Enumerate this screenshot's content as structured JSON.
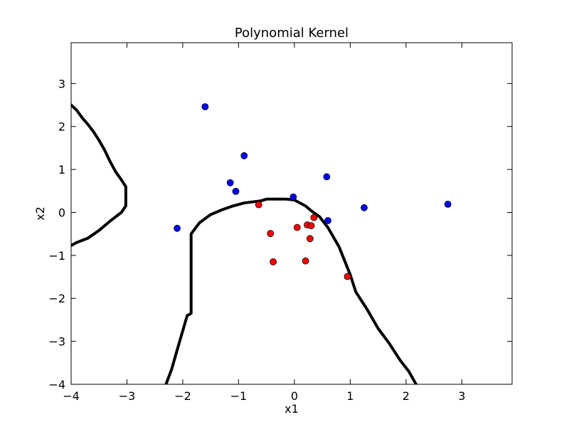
{
  "chart_data": {
    "type": "scatter",
    "title": "Polynomial Kernel",
    "xlabel": "x1",
    "ylabel": "x2",
    "xlim": [
      -4,
      3.9
    ],
    "ylim": [
      -4,
      3.95
    ],
    "grid": false,
    "x_ticks": [
      -4,
      -3,
      -2,
      -1,
      0,
      1,
      2,
      3
    ],
    "y_ticks": [
      -4,
      -3,
      -2,
      -1,
      0,
      1,
      2,
      3
    ],
    "x_tick_labels": [
      "−4",
      "−3",
      "−2",
      "−1",
      "0",
      "1",
      "2",
      "3"
    ],
    "y_tick_labels": [
      "−4",
      "−3",
      "−2",
      "−1",
      "0",
      "1",
      "2",
      "3"
    ],
    "series": [
      {
        "color": "#0000ff",
        "points": [
          {
            "x": -1.6,
            "y": 2.46
          },
          {
            "x": -0.9,
            "y": 1.32
          },
          {
            "x": -1.15,
            "y": 0.69
          },
          {
            "x": -1.05,
            "y": 0.49
          },
          {
            "x": -2.1,
            "y": -0.37
          },
          {
            "x": -0.02,
            "y": 0.36
          },
          {
            "x": 0.58,
            "y": 0.83
          },
          {
            "x": 0.6,
            "y": -0.19
          },
          {
            "x": 1.25,
            "y": 0.11
          },
          {
            "x": 2.75,
            "y": 0.19
          }
        ]
      },
      {
        "color": "#ff0000",
        "points": [
          {
            "x": -0.64,
            "y": 0.18
          },
          {
            "x": -0.43,
            "y": -0.49
          },
          {
            "x": 0.05,
            "y": -0.35
          },
          {
            "x": 0.23,
            "y": -0.29
          },
          {
            "x": 0.3,
            "y": -0.31
          },
          {
            "x": 0.35,
            "y": -0.12
          },
          {
            "x": 0.28,
            "y": -0.61
          },
          {
            "x": -0.38,
            "y": -1.15
          },
          {
            "x": 0.2,
            "y": -1.13
          },
          {
            "x": 0.95,
            "y": -1.49
          }
        ]
      }
    ],
    "decision_boundaries": [
      {
        "color": "#000000",
        "points": [
          {
            "x": -4.0,
            "y": 2.5
          },
          {
            "x": -3.9,
            "y": 2.38
          },
          {
            "x": -3.8,
            "y": 2.2
          },
          {
            "x": -3.7,
            "y": 2.05
          },
          {
            "x": -3.6,
            "y": 1.88
          },
          {
            "x": -3.5,
            "y": 1.68
          },
          {
            "x": -3.4,
            "y": 1.45
          },
          {
            "x": -3.3,
            "y": 1.18
          },
          {
            "x": -3.2,
            "y": 0.94
          },
          {
            "x": -3.1,
            "y": 0.76
          },
          {
            "x": -3.02,
            "y": 0.6
          },
          {
            "x": -3.02,
            "y": 0.15
          },
          {
            "x": -3.1,
            "y": 0.0
          },
          {
            "x": -3.3,
            "y": -0.2
          },
          {
            "x": -3.5,
            "y": -0.42
          },
          {
            "x": -3.7,
            "y": -0.6
          },
          {
            "x": -3.9,
            "y": -0.7
          },
          {
            "x": -4.0,
            "y": -0.77
          }
        ]
      },
      {
        "color": "#000000",
        "points": [
          {
            "x": -2.3,
            "y": -4.0
          },
          {
            "x": -2.2,
            "y": -3.65
          },
          {
            "x": -2.1,
            "y": -3.2
          },
          {
            "x": -1.92,
            "y": -2.4
          },
          {
            "x": -1.85,
            "y": -2.35
          },
          {
            "x": -1.85,
            "y": -0.5
          },
          {
            "x": -1.7,
            "y": -0.24
          },
          {
            "x": -1.5,
            "y": -0.05
          },
          {
            "x": -1.3,
            "y": 0.06
          },
          {
            "x": -1.1,
            "y": 0.15
          },
          {
            "x": -0.9,
            "y": 0.22
          },
          {
            "x": -0.6,
            "y": 0.27
          },
          {
            "x": -0.5,
            "y": 0.31
          },
          {
            "x": -0.15,
            "y": 0.31
          },
          {
            "x": 0.0,
            "y": 0.29
          },
          {
            "x": 0.2,
            "y": 0.15
          },
          {
            "x": 0.3,
            "y": 0.04
          },
          {
            "x": 0.45,
            "y": -0.1
          },
          {
            "x": 0.6,
            "y": -0.35
          },
          {
            "x": 0.8,
            "y": -0.8
          },
          {
            "x": 1.0,
            "y": -1.45
          },
          {
            "x": 1.1,
            "y": -1.85
          },
          {
            "x": 1.3,
            "y": -2.25
          },
          {
            "x": 1.5,
            "y": -2.7
          },
          {
            "x": 1.7,
            "y": -3.05
          },
          {
            "x": 1.9,
            "y": -3.45
          },
          {
            "x": 2.05,
            "y": -3.7
          },
          {
            "x": 2.18,
            "y": -4.0
          }
        ]
      }
    ]
  }
}
